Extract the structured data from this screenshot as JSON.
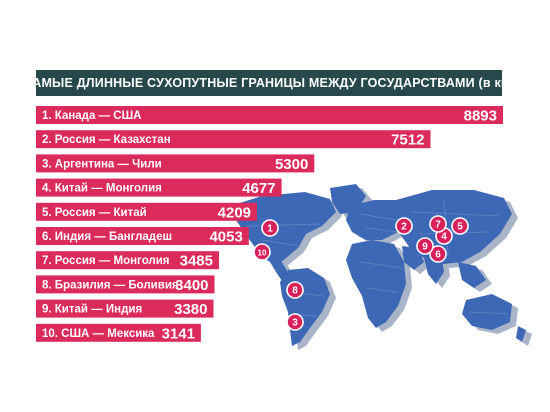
{
  "title": "САМЫЕ ДЛИННЫЕ СУХОПУТНЫЕ ГРАНИЦЫ МЕЖДУ ГОСУДАРСТВАМИ (в км)",
  "colors": {
    "bar": "#db2a5c",
    "title_bg": "#27494b",
    "map_land": "#3d68b5",
    "map_shadow": "#a9b4c9",
    "marker": "#d8205a"
  },
  "chart_data": {
    "type": "bar",
    "orientation": "horizontal",
    "title": "САМЫЕ ДЛИННЫЕ СУХОПУТНЫЕ ГРАНИЦЫ МЕЖДУ ГОСУДАРСТВАМИ (в км)",
    "categories": [
      "1. Канада — США",
      "2. Россия — Казахстан",
      "3. Аргентина — Чили",
      "4. Китай — Монголия",
      "5. Россия — Китай",
      "6. Индия — Бангладеш",
      "7. Россия — Монголия",
      "8. Бразилия — Боливия",
      "9. Китай — Индия",
      "10. США — Мексика"
    ],
    "values": [
      8893,
      7512,
      5300,
      4677,
      4209,
      4053,
      3485,
      3400,
      3380,
      3141
    ],
    "value_labels": [
      "8893",
      "7512",
      "5300",
      "4677",
      "4209",
      "4053",
      "3485",
      "3400",
      "3380",
      "3141"
    ],
    "xlim": [
      0,
      8893
    ],
    "grid": false,
    "legend": "none"
  },
  "map_markers": [
    "1",
    "2",
    "3",
    "4",
    "5",
    "6",
    "7",
    "8",
    "9",
    "10"
  ]
}
